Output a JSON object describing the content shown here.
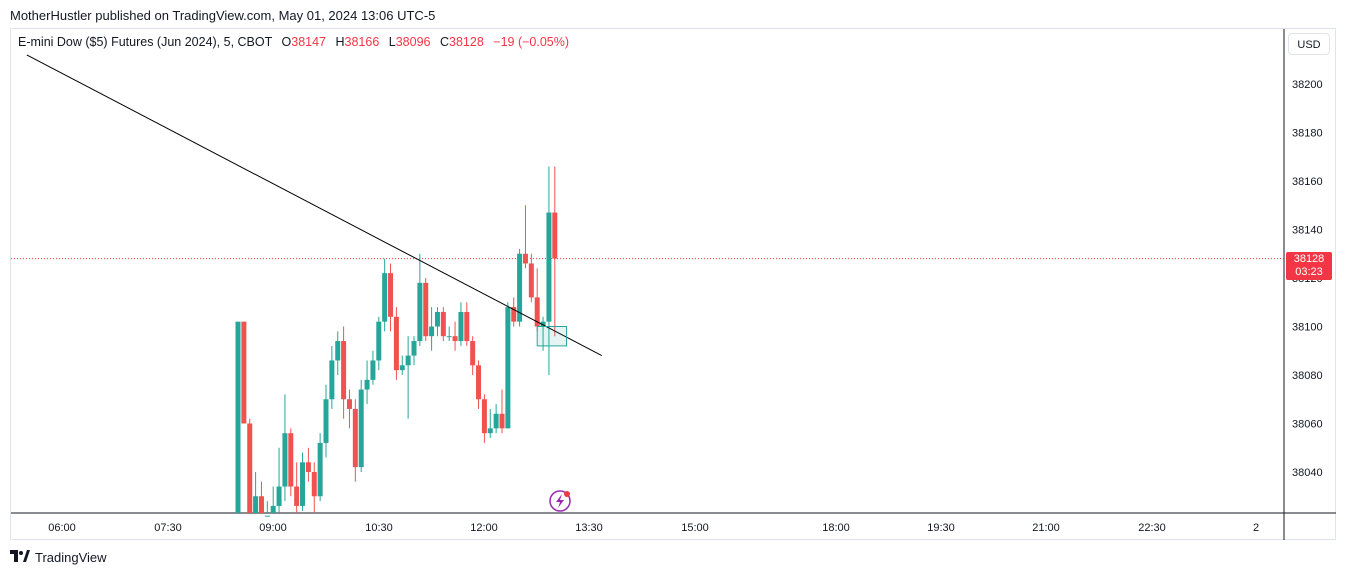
{
  "publisher_line": "MotherHustler published on TradingView.com, May 01, 2024 13:06 UTC-5",
  "legend": {
    "symbol": "E-mini Dow ($5) Futures (Jun 2024), 5, CBOT",
    "open_label": "O",
    "open": "38147",
    "high_label": "H",
    "high": "38166",
    "low_label": "L",
    "low": "38096",
    "close_label": "C",
    "close": "38128",
    "change": "−19 (−0.05%)"
  },
  "currency_button": "USD",
  "price_tag": {
    "price": "38128",
    "countdown": "03:23"
  },
  "footer_brand": "TradingView",
  "colors": {
    "up": "#26a69a",
    "down": "#ef5350",
    "last_price": "#f23645",
    "trendline": "#000000",
    "box": "#26a69a"
  },
  "icons": {
    "alert": "lightning-alert-icon",
    "logo": "tradingview-logo-icon"
  },
  "chart_data": {
    "type": "candlestick",
    "interval_minutes": 5,
    "x_tick_labels": [
      "06:00",
      "07:30",
      "09:00",
      "10:30",
      "12:00",
      "13:30",
      "15:00",
      "18:00",
      "19:30",
      "21:00",
      "22:30",
      "2"
    ],
    "y_tick_labels": [
      "38040",
      "38060",
      "38080",
      "38100",
      "38120",
      "38140",
      "38160",
      "38180",
      "38200"
    ],
    "y_range": [
      38024,
      38216
    ],
    "last_price": 38128,
    "candles": [
      {
        "t": "08:30",
        "o": 38020,
        "h": 38102,
        "l": 38020,
        "c": 38102
      },
      {
        "t": "08:35",
        "o": 38102,
        "h": 38102,
        "l": 38060,
        "c": 38060
      },
      {
        "t": "08:40",
        "o": 38060,
        "h": 38062,
        "l": 38018,
        "c": 38020
      },
      {
        "t": "08:45",
        "o": 38020,
        "h": 38040,
        "l": 38018,
        "c": 38030
      },
      {
        "t": "08:50",
        "o": 38030,
        "h": 38036,
        "l": 38018,
        "c": 38020
      },
      {
        "t": "08:55",
        "o": 38020,
        "h": 38028,
        "l": 38018,
        "c": 38022
      },
      {
        "t": "09:00",
        "o": 38022,
        "h": 38034,
        "l": 38010,
        "c": 38026
      },
      {
        "t": "09:05",
        "o": 38026,
        "h": 38050,
        "l": 38020,
        "c": 38034
      },
      {
        "t": "09:10",
        "o": 38034,
        "h": 38072,
        "l": 38028,
        "c": 38056
      },
      {
        "t": "09:15",
        "o": 38056,
        "h": 38058,
        "l": 38030,
        "c": 38034
      },
      {
        "t": "09:20",
        "o": 38034,
        "h": 38044,
        "l": 38022,
        "c": 38026
      },
      {
        "t": "09:25",
        "o": 38026,
        "h": 38048,
        "l": 38024,
        "c": 38044
      },
      {
        "t": "09:30",
        "o": 38044,
        "h": 38050,
        "l": 38036,
        "c": 38040
      },
      {
        "t": "09:35",
        "o": 38040,
        "h": 38044,
        "l": 38022,
        "c": 38030
      },
      {
        "t": "09:40",
        "o": 38030,
        "h": 38056,
        "l": 38028,
        "c": 38052
      },
      {
        "t": "09:45",
        "o": 38052,
        "h": 38076,
        "l": 38046,
        "c": 38070
      },
      {
        "t": "09:50",
        "o": 38070,
        "h": 38092,
        "l": 38066,
        "c": 38086
      },
      {
        "t": "09:55",
        "o": 38086,
        "h": 38098,
        "l": 38080,
        "c": 38094
      },
      {
        "t": "10:00",
        "o": 38094,
        "h": 38100,
        "l": 38062,
        "c": 38070
      },
      {
        "t": "10:05",
        "o": 38070,
        "h": 38074,
        "l": 38058,
        "c": 38066
      },
      {
        "t": "10:10",
        "o": 38066,
        "h": 38070,
        "l": 38036,
        "c": 38042
      },
      {
        "t": "10:15",
        "o": 38042,
        "h": 38078,
        "l": 38040,
        "c": 38074
      },
      {
        "t": "10:20",
        "o": 38074,
        "h": 38086,
        "l": 38068,
        "c": 38078
      },
      {
        "t": "10:25",
        "o": 38078,
        "h": 38090,
        "l": 38076,
        "c": 38086
      },
      {
        "t": "10:30",
        "o": 38086,
        "h": 38104,
        "l": 38082,
        "c": 38102
      },
      {
        "t": "10:35",
        "o": 38102,
        "h": 38128,
        "l": 38098,
        "c": 38122
      },
      {
        "t": "10:40",
        "o": 38122,
        "h": 38126,
        "l": 38098,
        "c": 38104
      },
      {
        "t": "10:45",
        "o": 38104,
        "h": 38108,
        "l": 38078,
        "c": 38082
      },
      {
        "t": "10:50",
        "o": 38082,
        "h": 38088,
        "l": 38080,
        "c": 38084
      },
      {
        "t": "10:55",
        "o": 38084,
        "h": 38096,
        "l": 38062,
        "c": 38088
      },
      {
        "t": "11:00",
        "o": 38088,
        "h": 38096,
        "l": 38084,
        "c": 38094
      },
      {
        "t": "11:05",
        "o": 38094,
        "h": 38130,
        "l": 38092,
        "c": 38118
      },
      {
        "t": "11:10",
        "o": 38118,
        "h": 38120,
        "l": 38094,
        "c": 38096
      },
      {
        "t": "11:15",
        "o": 38096,
        "h": 38108,
        "l": 38090,
        "c": 38100
      },
      {
        "t": "11:20",
        "o": 38100,
        "h": 38108,
        "l": 38096,
        "c": 38106
      },
      {
        "t": "11:25",
        "o": 38106,
        "h": 38108,
        "l": 38094,
        "c": 38096
      },
      {
        "t": "11:30",
        "o": 38096,
        "h": 38100,
        "l": 38094,
        "c": 38096
      },
      {
        "t": "11:35",
        "o": 38096,
        "h": 38102,
        "l": 38090,
        "c": 38094
      },
      {
        "t": "11:40",
        "o": 38094,
        "h": 38110,
        "l": 38092,
        "c": 38106
      },
      {
        "t": "11:45",
        "o": 38106,
        "h": 38110,
        "l": 38092,
        "c": 38094
      },
      {
        "t": "11:50",
        "o": 38094,
        "h": 38096,
        "l": 38080,
        "c": 38084
      },
      {
        "t": "11:55",
        "o": 38084,
        "h": 38086,
        "l": 38066,
        "c": 38070
      },
      {
        "t": "12:00",
        "o": 38070,
        "h": 38072,
        "l": 38052,
        "c": 38056
      },
      {
        "t": "12:05",
        "o": 38056,
        "h": 38066,
        "l": 38054,
        "c": 38058
      },
      {
        "t": "12:10",
        "o": 38058,
        "h": 38068,
        "l": 38056,
        "c": 38064
      },
      {
        "t": "12:15",
        "o": 38064,
        "h": 38074,
        "l": 38056,
        "c": 38058
      },
      {
        "t": "12:20",
        "o": 38058,
        "h": 38110,
        "l": 38058,
        "c": 38108
      },
      {
        "t": "12:25",
        "o": 38108,
        "h": 38112,
        "l": 38100,
        "c": 38102
      },
      {
        "t": "12:30",
        "o": 38102,
        "h": 38132,
        "l": 38100,
        "c": 38130
      },
      {
        "t": "12:35",
        "o": 38130,
        "h": 38150,
        "l": 38124,
        "c": 38126
      },
      {
        "t": "12:40",
        "o": 38126,
        "h": 38130,
        "l": 38110,
        "c": 38112
      },
      {
        "t": "12:45",
        "o": 38112,
        "h": 38124,
        "l": 38098,
        "c": 38100
      },
      {
        "t": "12:50",
        "o": 38100,
        "h": 38104,
        "l": 38090,
        "c": 38102
      },
      {
        "t": "12:55",
        "o": 38102,
        "h": 38166,
        "l": 38080,
        "c": 38147
      },
      {
        "t": "13:00",
        "o": 38147,
        "h": 38166,
        "l": 38096,
        "c": 38128
      }
    ],
    "drawings": {
      "trendline": {
        "from": {
          "t": "05:30",
          "price": 38212
        },
        "to": {
          "t": "13:40",
          "price": 38088
        }
      },
      "box": {
        "from": {
          "t": "12:45",
          "price": 38100
        },
        "to": {
          "t": "13:10",
          "price": 38092
        }
      }
    }
  }
}
